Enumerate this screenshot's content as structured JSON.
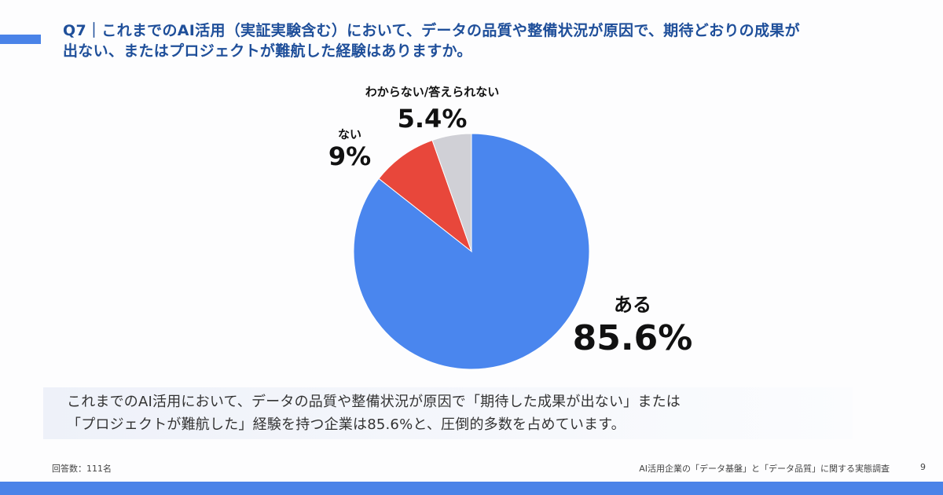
{
  "header": {
    "title_line1": "Q7｜これまでのAI活用（実証実験含む）において、データの品質や整備状況が原因で、期待どおりの成果が",
    "title_line2": "出ない、またはプロジェクトが難航した経験はありますか。"
  },
  "colors": {
    "accent": "#4a83e8",
    "title": "#1f4f9a",
    "yes": "#4a86ee",
    "no": "#e8473b",
    "unknown": "#d0d0d6"
  },
  "chart_data": {
    "type": "pie",
    "title": "Q7｜これまでのAI活用（実証実験含む）において、データの品質や整備状況が原因で、期待どおりの成果が出ない、またはプロジェクトが難航した経験はありますか。",
    "categories": [
      "ある",
      "ない",
      "わからない/答えられない"
    ],
    "values": [
      85.6,
      9,
      5.4
    ],
    "value_labels": [
      "85.6%",
      "9%",
      "5.4%"
    ],
    "colors": [
      "#4a86ee",
      "#e8473b",
      "#d0d0d6"
    ],
    "start_angle": "12 o'clock",
    "direction": "clockwise",
    "legend": "none (direct labels)"
  },
  "labels": {
    "yes": {
      "name": "ある",
      "pct": "85.6%"
    },
    "no": {
      "name": "ない",
      "pct": "9%"
    },
    "unknown": {
      "name": "わからない/答えられない",
      "pct": "5.4%"
    }
  },
  "summary": {
    "line1": "これまでのAI活用において、データの品質や整備状況が原因で「期待した成果が出ない」または",
    "line2": "「プロジェクトが難航した」経験を持つ企業は85.6%と、圧倒的多数を占めています。"
  },
  "footer": {
    "respondents": "回答数：111名",
    "survey_title": "AI活用企業の「データ基盤」と「データ品質」に関する実態調査",
    "page": "9"
  }
}
